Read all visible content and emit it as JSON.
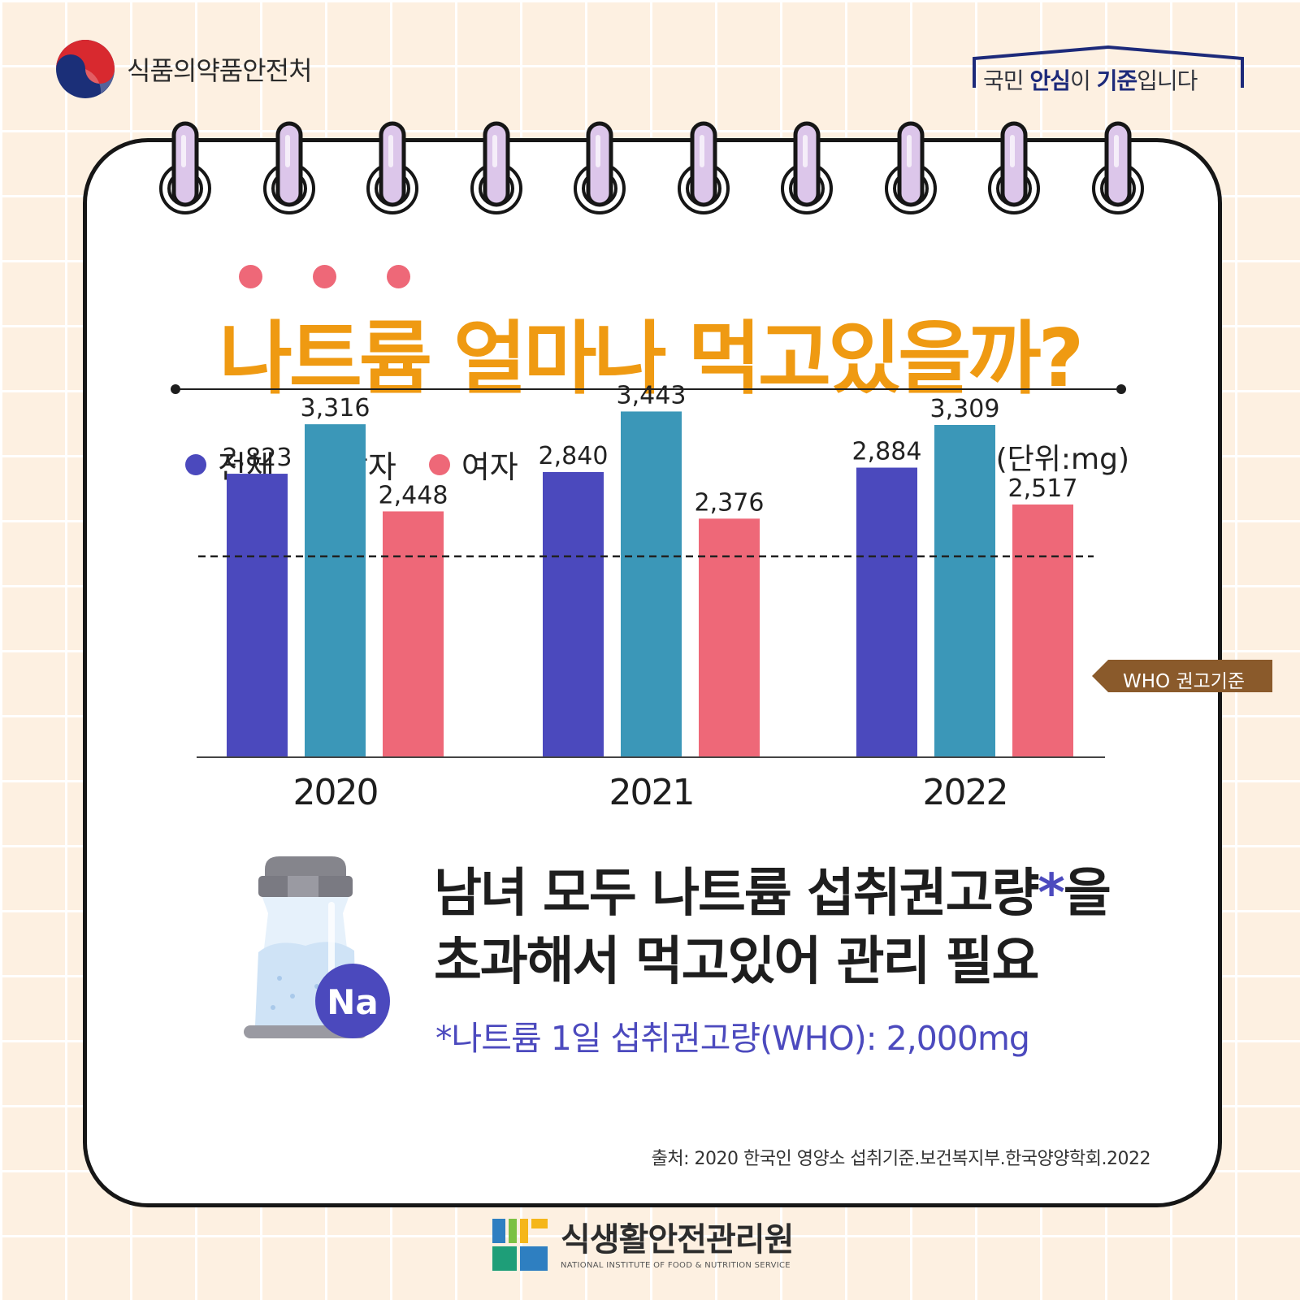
{
  "header": {
    "agency_name": "식품의약품안전처",
    "slogan_parts": [
      "국민 ",
      "안심",
      "이 ",
      "기준",
      "입니다"
    ]
  },
  "title": "나트륨 얼마나 먹고있을까?",
  "legend": [
    "전체",
    "남자",
    "여자"
  ],
  "unit": "(단위:mg)",
  "who_label": "WHO 권고기준",
  "message_line1": "남녀 모두 나트륨 섭취권고량",
  "message_asterisk": "*",
  "message_line1_end": "을",
  "message_line2": "초과해서 먹고있어 관리 필요",
  "footnote": "*나트륨 1일 섭취권고량(WHO): 2,000mg",
  "badge": "Na",
  "source": "출처: 2020 한국인 영양소 섭취기준.보건복지부.한국양양학회.2022",
  "footer": {
    "name_kr": "식생활안전관리원",
    "name_en": "NATIONAL INSTITUTE OF FOOD & NUTRITION SERVICE"
  },
  "colors": {
    "total": "#4b49bd",
    "male": "#3b97b8",
    "female": "#ee6878",
    "title": "#ef9a12",
    "who_tag": "#8a5a2b"
  },
  "chart_data": {
    "type": "bar",
    "categories": [
      "2020",
      "2021",
      "2022"
    ],
    "series": [
      {
        "name": "전체",
        "values": [
          2823,
          2840,
          2884
        ],
        "labels": [
          "2,823",
          "2,840",
          "2,884"
        ]
      },
      {
        "name": "남자",
        "values": [
          3316,
          3443,
          3309
        ],
        "labels": [
          "3,316",
          "3,443",
          "3,309"
        ]
      },
      {
        "name": "여자",
        "values": [
          2448,
          2376,
          2517
        ],
        "labels": [
          "2,448",
          "2,376",
          "2,517"
        ]
      }
    ],
    "reference_line": {
      "label": "WHO 권고기준",
      "value": 2000
    },
    "legend_position": "top-left",
    "grid": false
  }
}
